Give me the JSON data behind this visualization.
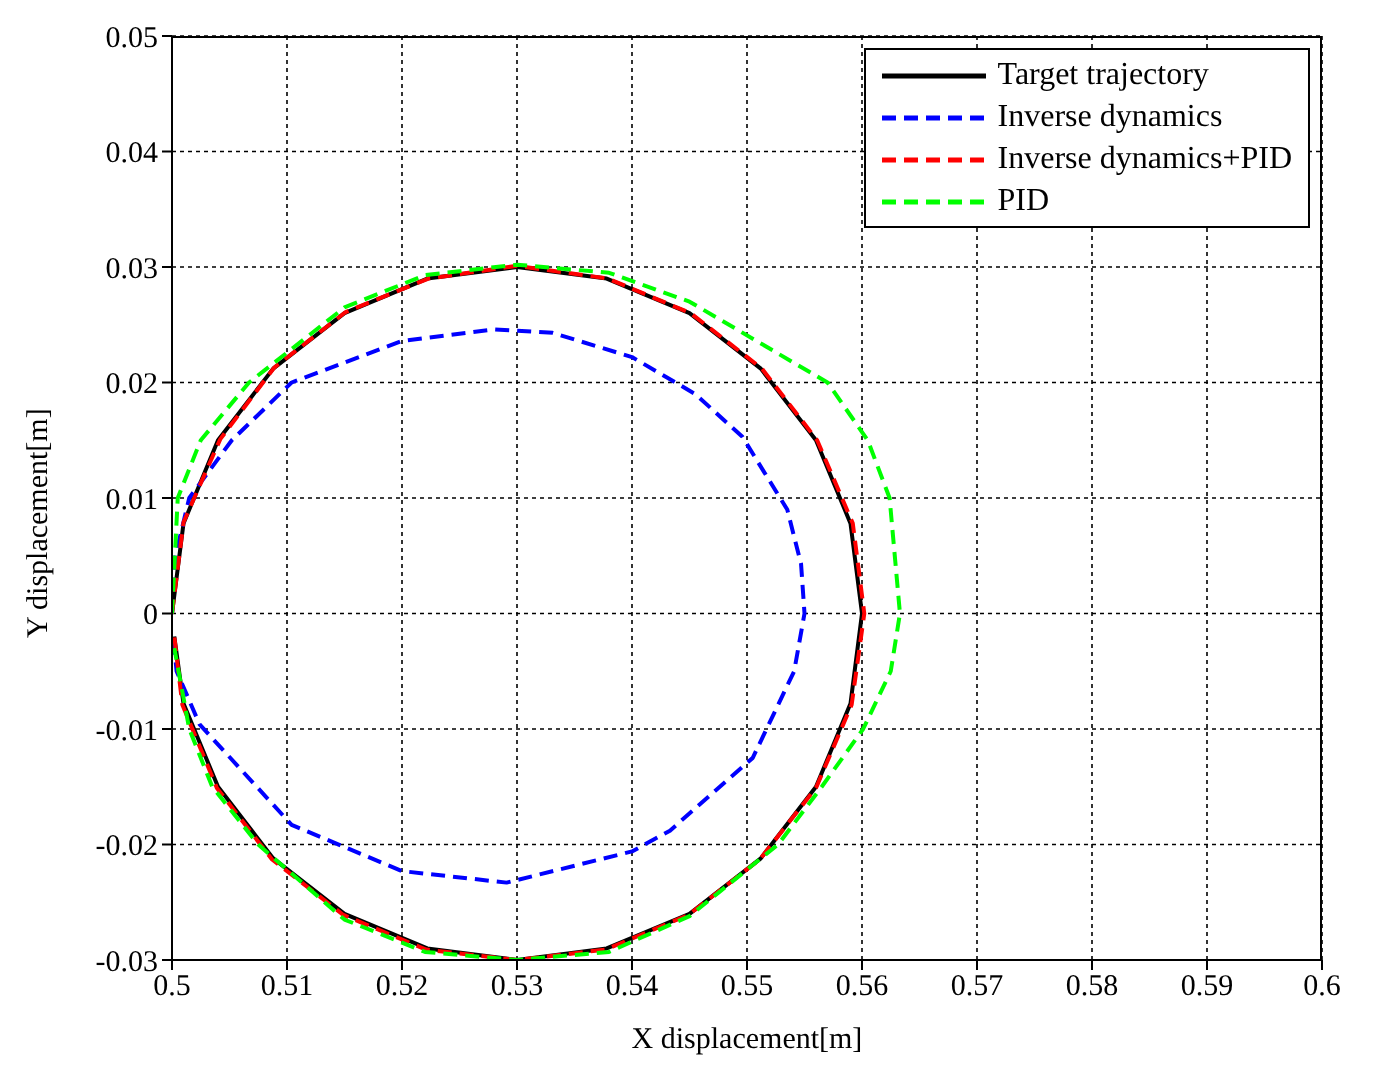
{
  "chart_data": {
    "type": "line",
    "xlabel": "X displacement[m]",
    "ylabel": "Y displacement[m]",
    "xlim": [
      0.5,
      0.6
    ],
    "xticks": [
      0.5,
      0.51,
      0.52,
      0.53,
      0.54,
      0.55,
      0.56,
      0.57,
      0.58,
      0.59,
      0.6
    ],
    "ylim": [
      -0.03,
      0.05
    ],
    "yticks": [
      -0.03,
      -0.02,
      -0.01,
      0,
      0.01,
      0.02,
      0.03,
      0.04,
      0.05
    ],
    "grid": true,
    "legend": "top right",
    "marker": "none",
    "series": [
      {
        "name": "Target trajectory",
        "color": "#000000",
        "line_style": "solid",
        "x": [
          0.5,
          0.501,
          0.504,
          0.5088,
          0.515,
          0.5222,
          0.53,
          0.5378,
          0.545,
          0.5512,
          0.556,
          0.559,
          0.56,
          0.559,
          0.556,
          0.5512,
          0.545,
          0.5378,
          0.53,
          0.5222,
          0.515,
          0.5088,
          0.504,
          0.501,
          0.5002
        ],
        "values": [
          0,
          0.0078,
          0.015,
          0.0212,
          0.026,
          0.029,
          0.03,
          0.029,
          0.026,
          0.0212,
          0.015,
          0.0078,
          0,
          -0.0078,
          -0.015,
          -0.0212,
          -0.026,
          -0.029,
          -0.03,
          -0.029,
          -0.026,
          -0.0212,
          -0.015,
          -0.0078,
          -0.002
        ]
      },
      {
        "name": "Inverse dynamics",
        "color": "#0000ff",
        "line_style": "dashed",
        "x": [
          0.5,
          0.5003,
          0.5015,
          0.5052,
          0.5104,
          0.52,
          0.528,
          0.5331,
          0.54,
          0.5455,
          0.5496,
          0.5535,
          0.5547,
          0.555,
          0.5541,
          0.5505,
          0.5433,
          0.54,
          0.5291,
          0.52,
          0.5104,
          0.5024,
          0.5004,
          0.5001
        ],
        "values": [
          0,
          0.005,
          0.01,
          0.015,
          0.02,
          0.0236,
          0.0246,
          0.0243,
          0.0222,
          0.019,
          0.0153,
          0.009,
          0.0043,
          0,
          -0.005,
          -0.0125,
          -0.0188,
          -0.0206,
          -0.0233,
          -0.0223,
          -0.0183,
          -0.0096,
          -0.005,
          -0.002
        ]
      },
      {
        "name": "Inverse dynamics+PID",
        "color": "#ff0000",
        "line_style": "dashed",
        "x": [
          0.5,
          0.501,
          0.5042,
          0.5089,
          0.5151,
          0.5223,
          0.53,
          0.5379,
          0.5451,
          0.5513,
          0.5561,
          0.5592,
          0.5602,
          0.5591,
          0.556,
          0.5511,
          0.5449,
          0.5377,
          0.53,
          0.5221,
          0.5149,
          0.5087,
          0.5039,
          0.5009,
          0.5002
        ],
        "values": [
          0,
          0.0079,
          0.0151,
          0.0213,
          0.0261,
          0.029,
          0.0301,
          0.029,
          0.026,
          0.0212,
          0.015,
          0.0078,
          0,
          -0.0079,
          -0.0151,
          -0.0213,
          -0.0261,
          -0.0291,
          -0.03,
          -0.0291,
          -0.0261,
          -0.0213,
          -0.0151,
          -0.0079,
          -0.002
        ]
      },
      {
        "name": "PID",
        "color": "#00ff00",
        "line_style": "dashed",
        "x": [
          0.5,
          0.5005,
          0.5025,
          0.5067,
          0.515,
          0.522,
          0.53,
          0.538,
          0.545,
          0.557,
          0.5605,
          0.5624,
          0.5633,
          0.5625,
          0.5601,
          0.5565,
          0.5527,
          0.545,
          0.538,
          0.53,
          0.522,
          0.515,
          0.5075,
          0.5035,
          0.5015,
          0.5002
        ],
        "values": [
          0,
          0.01,
          0.015,
          0.02,
          0.0265,
          0.0293,
          0.0302,
          0.0295,
          0.027,
          0.02,
          0.015,
          0.01,
          0,
          -0.005,
          -0.01,
          -0.015,
          -0.02,
          -0.0262,
          -0.0293,
          -0.03,
          -0.0293,
          -0.0265,
          -0.02,
          -0.015,
          -0.01,
          -0.003
        ]
      }
    ]
  }
}
